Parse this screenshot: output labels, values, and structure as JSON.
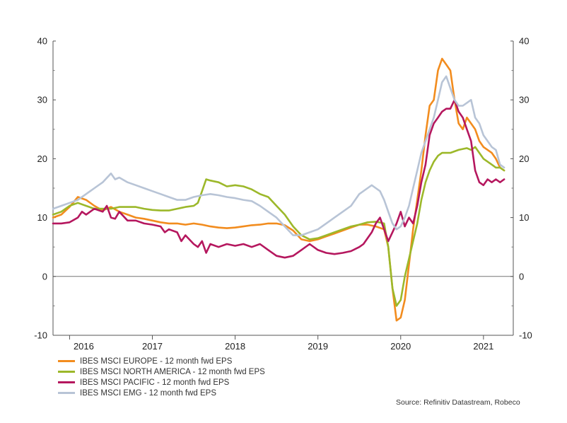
{
  "chart_data": {
    "type": "line",
    "title": "",
    "xlabel": "",
    "ylabel": "",
    "ylim": [
      -10,
      40
    ],
    "xlim": [
      2015.8,
      2021.36
    ],
    "y_ticks": [
      -10,
      0,
      10,
      20,
      30,
      40
    ],
    "x_ticks": [
      {
        "label": "2016",
        "pos": 2016.0
      },
      {
        "label": "2017",
        "pos": 2017.0
      },
      {
        "label": "2018",
        "pos": 2018.0
      },
      {
        "label": "2019",
        "pos": 2019.0
      },
      {
        "label": "2020",
        "pos": 2020.0
      },
      {
        "label": "2021",
        "pos": 2021.0
      }
    ],
    "legend_position": "bottom-left",
    "series": [
      {
        "name": "IBES MSCI EUROPE - 12 month fwd EPS",
        "color": "#f28c1e",
        "points": [
          [
            2015.8,
            10.0
          ],
          [
            2015.9,
            10.5
          ],
          [
            2016.0,
            11.8
          ],
          [
            2016.1,
            13.5
          ],
          [
            2016.2,
            13.0
          ],
          [
            2016.3,
            12.0
          ],
          [
            2016.4,
            11.2
          ],
          [
            2016.5,
            11.8
          ],
          [
            2016.6,
            11.0
          ],
          [
            2016.7,
            10.5
          ],
          [
            2016.8,
            10.0
          ],
          [
            2016.9,
            9.8
          ],
          [
            2017.0,
            9.5
          ],
          [
            2017.1,
            9.2
          ],
          [
            2017.2,
            9.0
          ],
          [
            2017.3,
            9.0
          ],
          [
            2017.4,
            8.8
          ],
          [
            2017.5,
            9.0
          ],
          [
            2017.6,
            8.8
          ],
          [
            2017.7,
            8.5
          ],
          [
            2017.8,
            8.3
          ],
          [
            2017.9,
            8.2
          ],
          [
            2018.0,
            8.3
          ],
          [
            2018.1,
            8.5
          ],
          [
            2018.2,
            8.7
          ],
          [
            2018.3,
            8.8
          ],
          [
            2018.4,
            9.0
          ],
          [
            2018.5,
            9.0
          ],
          [
            2018.6,
            8.7
          ],
          [
            2018.7,
            7.8
          ],
          [
            2018.8,
            6.3
          ],
          [
            2018.9,
            6.0
          ],
          [
            2019.0,
            6.3
          ],
          [
            2019.1,
            6.8
          ],
          [
            2019.2,
            7.3
          ],
          [
            2019.3,
            7.8
          ],
          [
            2019.4,
            8.3
          ],
          [
            2019.5,
            8.8
          ],
          [
            2019.6,
            8.8
          ],
          [
            2019.7,
            8.5
          ],
          [
            2019.8,
            8.0
          ],
          [
            2019.85,
            5.0
          ],
          [
            2019.9,
            -2.0
          ],
          [
            2019.95,
            -7.5
          ],
          [
            2020.0,
            -7.0
          ],
          [
            2020.05,
            -4.0
          ],
          [
            2020.1,
            2.0
          ],
          [
            2020.15,
            8.0
          ],
          [
            2020.2,
            13.0
          ],
          [
            2020.25,
            18.0
          ],
          [
            2020.3,
            24.0
          ],
          [
            2020.35,
            29.0
          ],
          [
            2020.4,
            30.0
          ],
          [
            2020.45,
            35.0
          ],
          [
            2020.5,
            37.0
          ],
          [
            2020.55,
            36.0
          ],
          [
            2020.6,
            35.0
          ],
          [
            2020.65,
            30.0
          ],
          [
            2020.7,
            26.0
          ],
          [
            2020.75,
            25.0
          ],
          [
            2020.8,
            27.0
          ],
          [
            2020.85,
            26.0
          ],
          [
            2020.9,
            25.0
          ],
          [
            2020.95,
            23.0
          ],
          [
            2021.0,
            22.0
          ],
          [
            2021.05,
            21.5
          ],
          [
            2021.1,
            21.0
          ],
          [
            2021.15,
            20.0
          ],
          [
            2021.2,
            18.5
          ],
          [
            2021.25,
            18.0
          ]
        ]
      },
      {
        "name": "IBES MSCI NORTH AMERICA - 12 month fwd EPS",
        "color": "#9cb82a",
        "points": [
          [
            2015.8,
            10.5
          ],
          [
            2015.9,
            11.0
          ],
          [
            2016.0,
            12.0
          ],
          [
            2016.1,
            12.5
          ],
          [
            2016.2,
            12.0
          ],
          [
            2016.3,
            11.5
          ],
          [
            2016.4,
            11.5
          ],
          [
            2016.5,
            11.5
          ],
          [
            2016.6,
            11.8
          ],
          [
            2016.7,
            11.8
          ],
          [
            2016.8,
            11.8
          ],
          [
            2016.9,
            11.5
          ],
          [
            2017.0,
            11.3
          ],
          [
            2017.1,
            11.2
          ],
          [
            2017.2,
            11.2
          ],
          [
            2017.3,
            11.5
          ],
          [
            2017.4,
            11.8
          ],
          [
            2017.5,
            12.0
          ],
          [
            2017.55,
            12.5
          ],
          [
            2017.6,
            14.5
          ],
          [
            2017.65,
            16.5
          ],
          [
            2017.7,
            16.3
          ],
          [
            2017.8,
            16.0
          ],
          [
            2017.9,
            15.3
          ],
          [
            2018.0,
            15.5
          ],
          [
            2018.1,
            15.3
          ],
          [
            2018.2,
            14.8
          ],
          [
            2018.3,
            14.0
          ],
          [
            2018.4,
            13.5
          ],
          [
            2018.5,
            12.0
          ],
          [
            2018.6,
            10.5
          ],
          [
            2018.7,
            8.5
          ],
          [
            2018.8,
            7.0
          ],
          [
            2018.9,
            6.3
          ],
          [
            2019.0,
            6.5
          ],
          [
            2019.1,
            7.0
          ],
          [
            2019.2,
            7.5
          ],
          [
            2019.3,
            8.0
          ],
          [
            2019.4,
            8.5
          ],
          [
            2019.5,
            8.8
          ],
          [
            2019.6,
            9.2
          ],
          [
            2019.7,
            9.3
          ],
          [
            2019.8,
            9.0
          ],
          [
            2019.85,
            5.0
          ],
          [
            2019.9,
            -2.0
          ],
          [
            2019.95,
            -5.0
          ],
          [
            2020.0,
            -4.0
          ],
          [
            2020.05,
            0.0
          ],
          [
            2020.1,
            3.0
          ],
          [
            2020.15,
            6.0
          ],
          [
            2020.2,
            9.0
          ],
          [
            2020.25,
            13.0
          ],
          [
            2020.3,
            16.0
          ],
          [
            2020.35,
            18.0
          ],
          [
            2020.4,
            19.5
          ],
          [
            2020.45,
            20.5
          ],
          [
            2020.5,
            21.0
          ],
          [
            2020.6,
            21.0
          ],
          [
            2020.7,
            21.5
          ],
          [
            2020.8,
            21.8
          ],
          [
            2020.85,
            21.5
          ],
          [
            2020.9,
            22.0
          ],
          [
            2020.95,
            21.0
          ],
          [
            2021.0,
            20.0
          ],
          [
            2021.05,
            19.5
          ],
          [
            2021.1,
            19.0
          ],
          [
            2021.15,
            18.5
          ],
          [
            2021.2,
            18.5
          ],
          [
            2021.25,
            18.0
          ]
        ]
      },
      {
        "name": "IBES MSCI PACIFIC - 12 month fwd EPS",
        "color": "#b5175e",
        "points": [
          [
            2015.8,
            9.0
          ],
          [
            2015.9,
            9.0
          ],
          [
            2016.0,
            9.2
          ],
          [
            2016.1,
            10.0
          ],
          [
            2016.15,
            11.0
          ],
          [
            2016.2,
            10.5
          ],
          [
            2016.3,
            11.5
          ],
          [
            2016.4,
            11.0
          ],
          [
            2016.45,
            12.0
          ],
          [
            2016.5,
            10.0
          ],
          [
            2016.55,
            9.8
          ],
          [
            2016.6,
            11.0
          ],
          [
            2016.7,
            9.5
          ],
          [
            2016.8,
            9.5
          ],
          [
            2016.9,
            9.0
          ],
          [
            2017.0,
            8.8
          ],
          [
            2017.1,
            8.5
          ],
          [
            2017.15,
            7.5
          ],
          [
            2017.2,
            8.0
          ],
          [
            2017.3,
            7.5
          ],
          [
            2017.35,
            6.0
          ],
          [
            2017.4,
            7.0
          ],
          [
            2017.5,
            5.5
          ],
          [
            2017.55,
            5.0
          ],
          [
            2017.6,
            6.0
          ],
          [
            2017.65,
            4.0
          ],
          [
            2017.7,
            5.5
          ],
          [
            2017.8,
            5.0
          ],
          [
            2017.9,
            5.5
          ],
          [
            2018.0,
            5.2
          ],
          [
            2018.1,
            5.5
          ],
          [
            2018.2,
            5.0
          ],
          [
            2018.3,
            5.5
          ],
          [
            2018.4,
            4.5
          ],
          [
            2018.5,
            3.5
          ],
          [
            2018.6,
            3.2
          ],
          [
            2018.7,
            3.5
          ],
          [
            2018.8,
            4.5
          ],
          [
            2018.9,
            5.5
          ],
          [
            2019.0,
            4.5
          ],
          [
            2019.1,
            4.0
          ],
          [
            2019.2,
            3.8
          ],
          [
            2019.3,
            4.0
          ],
          [
            2019.4,
            4.3
          ],
          [
            2019.5,
            5.0
          ],
          [
            2019.55,
            5.5
          ],
          [
            2019.6,
            6.5
          ],
          [
            2019.65,
            7.5
          ],
          [
            2019.7,
            9.0
          ],
          [
            2019.75,
            10.0
          ],
          [
            2019.8,
            8.0
          ],
          [
            2019.85,
            6.0
          ],
          [
            2019.9,
            7.5
          ],
          [
            2019.95,
            9.0
          ],
          [
            2020.0,
            11.0
          ],
          [
            2020.05,
            8.5
          ],
          [
            2020.1,
            10.0
          ],
          [
            2020.15,
            9.0
          ],
          [
            2020.2,
            12.0
          ],
          [
            2020.25,
            16.0
          ],
          [
            2020.3,
            19.0
          ],
          [
            2020.35,
            24.0
          ],
          [
            2020.4,
            26.0
          ],
          [
            2020.45,
            27.0
          ],
          [
            2020.5,
            28.0
          ],
          [
            2020.55,
            28.5
          ],
          [
            2020.6,
            28.5
          ],
          [
            2020.65,
            30.0
          ],
          [
            2020.7,
            28.0
          ],
          [
            2020.75,
            27.0
          ],
          [
            2020.8,
            25.0
          ],
          [
            2020.85,
            23.0
          ],
          [
            2020.9,
            18.0
          ],
          [
            2020.95,
            16.0
          ],
          [
            2021.0,
            15.5
          ],
          [
            2021.05,
            16.5
          ],
          [
            2021.1,
            16.0
          ],
          [
            2021.15,
            16.5
          ],
          [
            2021.2,
            16.0
          ],
          [
            2021.25,
            16.5
          ]
        ]
      },
      {
        "name": "IBES MSCI EMG - 12 month fwd EPS",
        "color": "#b8c4d6",
        "points": [
          [
            2015.8,
            11.5
          ],
          [
            2015.9,
            12.0
          ],
          [
            2016.0,
            12.5
          ],
          [
            2016.1,
            13.0
          ],
          [
            2016.2,
            14.0
          ],
          [
            2016.3,
            15.0
          ],
          [
            2016.4,
            16.0
          ],
          [
            2016.5,
            17.5
          ],
          [
            2016.55,
            16.5
          ],
          [
            2016.6,
            16.8
          ],
          [
            2016.7,
            16.0
          ],
          [
            2016.8,
            15.5
          ],
          [
            2016.9,
            15.0
          ],
          [
            2017.0,
            14.5
          ],
          [
            2017.1,
            14.0
          ],
          [
            2017.2,
            13.5
          ],
          [
            2017.3,
            13.0
          ],
          [
            2017.4,
            13.0
          ],
          [
            2017.5,
            13.5
          ],
          [
            2017.6,
            13.8
          ],
          [
            2017.7,
            14.0
          ],
          [
            2017.8,
            13.8
          ],
          [
            2017.9,
            13.5
          ],
          [
            2018.0,
            13.3
          ],
          [
            2018.1,
            13.0
          ],
          [
            2018.2,
            12.8
          ],
          [
            2018.3,
            12.0
          ],
          [
            2018.4,
            11.0
          ],
          [
            2018.5,
            10.0
          ],
          [
            2018.6,
            8.5
          ],
          [
            2018.7,
            7.0
          ],
          [
            2018.8,
            7.0
          ],
          [
            2018.9,
            7.5
          ],
          [
            2019.0,
            8.0
          ],
          [
            2019.1,
            9.0
          ],
          [
            2019.2,
            10.0
          ],
          [
            2019.3,
            11.0
          ],
          [
            2019.4,
            12.0
          ],
          [
            2019.5,
            14.0
          ],
          [
            2019.6,
            15.0
          ],
          [
            2019.65,
            15.5
          ],
          [
            2019.7,
            15.0
          ],
          [
            2019.75,
            14.5
          ],
          [
            2019.8,
            13.0
          ],
          [
            2019.85,
            11.0
          ],
          [
            2019.9,
            9.0
          ],
          [
            2019.95,
            8.0
          ],
          [
            2020.0,
            8.5
          ],
          [
            2020.05,
            10.0
          ],
          [
            2020.1,
            12.0
          ],
          [
            2020.15,
            15.0
          ],
          [
            2020.2,
            18.0
          ],
          [
            2020.25,
            21.0
          ],
          [
            2020.3,
            23.0
          ],
          [
            2020.35,
            25.0
          ],
          [
            2020.4,
            27.0
          ],
          [
            2020.45,
            30.0
          ],
          [
            2020.5,
            33.0
          ],
          [
            2020.55,
            34.0
          ],
          [
            2020.6,
            32.0
          ],
          [
            2020.65,
            30.0
          ],
          [
            2020.7,
            29.0
          ],
          [
            2020.75,
            29.0
          ],
          [
            2020.8,
            29.5
          ],
          [
            2020.85,
            30.0
          ],
          [
            2020.9,
            27.0
          ],
          [
            2020.95,
            26.0
          ],
          [
            2021.0,
            24.0
          ],
          [
            2021.05,
            23.0
          ],
          [
            2021.1,
            22.0
          ],
          [
            2021.15,
            21.5
          ],
          [
            2021.2,
            19.0
          ],
          [
            2021.25,
            18.5
          ]
        ]
      }
    ]
  },
  "source": "Source: Refinitiv Datastream, Robeco"
}
